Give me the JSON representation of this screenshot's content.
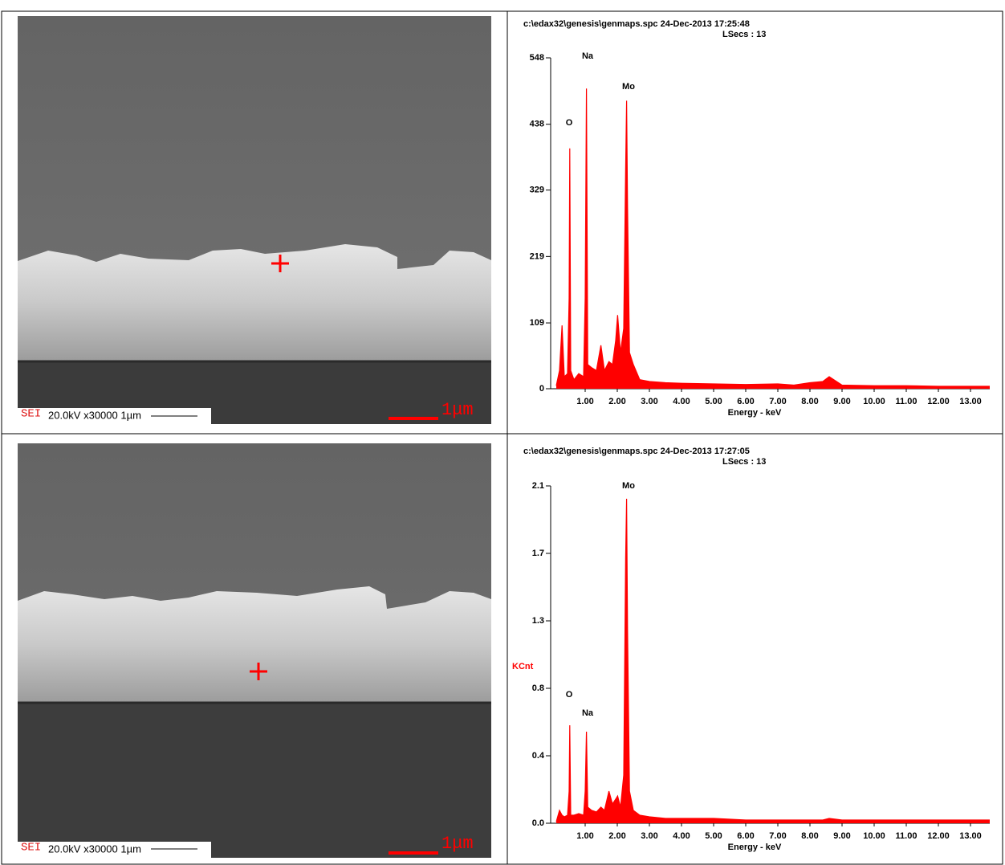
{
  "images": [
    {
      "detector": "SEI",
      "info": "20.0kV  x30000  1µm",
      "scale_bar": "1μm"
    },
    {
      "detector": "SEI",
      "info": "20.0kV  x30000  1µm",
      "scale_bar": "1μm"
    }
  ],
  "chart_data": [
    {
      "type": "area",
      "title": "c:\\edax32\\genesis\\genmaps.spc  24-Dec-2013 17:25:48",
      "subtitle": "LSecs : 13",
      "xlabel": "Energy - keV",
      "color": "#ff0000",
      "annotations": [
        "O",
        "Na",
        "Mo"
      ],
      "x": [
        0.1,
        0.2,
        0.28,
        0.35,
        0.45,
        0.5,
        0.52,
        0.55,
        0.65,
        0.8,
        0.95,
        1.0,
        1.04,
        1.08,
        1.2,
        1.35,
        1.49,
        1.6,
        1.74,
        1.85,
        1.95,
        2.01,
        2.1,
        2.2,
        2.26,
        2.29,
        2.32,
        2.38,
        2.5,
        2.7,
        3.0,
        3.5,
        4.0,
        5.0,
        6.0,
        7.0,
        7.5,
        8.0,
        8.4,
        8.6,
        9.0,
        10.0,
        11.0,
        12.0,
        13.0,
        13.6
      ],
      "values": [
        5,
        30,
        105,
        20,
        25,
        150,
        398,
        30,
        15,
        25,
        20,
        150,
        497,
        40,
        35,
        30,
        72,
        30,
        45,
        40,
        80,
        122,
        60,
        100,
        364,
        477,
        300,
        60,
        40,
        15,
        12,
        10,
        9,
        8,
        7,
        8,
        6,
        10,
        12,
        20,
        6,
        5,
        5,
        4,
        4,
        4
      ],
      "xlim": [
        0,
        13.6
      ],
      "xticks": [
        {
          "value": 1,
          "label": "1.00"
        },
        {
          "value": 2,
          "label": "2.00"
        },
        {
          "value": 3,
          "label": "3.00"
        },
        {
          "value": 4,
          "label": "4.00"
        },
        {
          "value": 5,
          "label": "5.00"
        },
        {
          "value": 6,
          "label": "6.00"
        },
        {
          "value": 7,
          "label": "7.00"
        },
        {
          "value": 8,
          "label": "8.00"
        },
        {
          "value": 9,
          "label": "9.00"
        },
        {
          "value": 10,
          "label": "10.00"
        },
        {
          "value": 11,
          "label": "11.00"
        },
        {
          "value": 12,
          "label": "12.00"
        },
        {
          "value": 13,
          "label": "13.00"
        }
      ],
      "ylim": [
        0,
        548
      ],
      "yticks": [
        0,
        109,
        219,
        329,
        438,
        548
      ]
    },
    {
      "type": "area",
      "title": "c:\\edax32\\genesis\\genmaps.spc  24-Dec-2013 17:27:05",
      "subtitle": "LSecs : 13",
      "xlabel": "Energy - keV",
      "ylabel": "KCnt",
      "color": "#ff0000",
      "annotations": [
        "O",
        "Na",
        "Mo"
      ],
      "x": [
        0.1,
        0.2,
        0.28,
        0.35,
        0.45,
        0.5,
        0.52,
        0.55,
        0.65,
        0.8,
        0.95,
        1.0,
        1.04,
        1.08,
        1.2,
        1.35,
        1.49,
        1.6,
        1.74,
        1.85,
        1.95,
        2.01,
        2.1,
        2.2,
        2.26,
        2.29,
        2.32,
        2.38,
        2.5,
        2.7,
        3.0,
        3.5,
        4.0,
        5.0,
        6.0,
        7.0,
        7.5,
        8.0,
        8.4,
        8.6,
        9.0,
        10.0,
        11.0,
        12.0,
        13.0,
        13.6
      ],
      "values": [
        0.01,
        0.08,
        0.05,
        0.04,
        0.05,
        0.2,
        0.61,
        0.05,
        0.05,
        0.06,
        0.05,
        0.2,
        0.57,
        0.1,
        0.08,
        0.07,
        0.1,
        0.08,
        0.2,
        0.12,
        0.15,
        0.17,
        0.1,
        0.3,
        1.65,
        2.02,
        1.2,
        0.2,
        0.08,
        0.05,
        0.04,
        0.03,
        0.03,
        0.03,
        0.02,
        0.02,
        0.02,
        0.02,
        0.02,
        0.03,
        0.02,
        0.02,
        0.02,
        0.02,
        0.02,
        0.02
      ],
      "xlim": [
        0,
        13.6
      ],
      "xticks": [
        {
          "value": 1,
          "label": "1.00"
        },
        {
          "value": 2,
          "label": "2.00"
        },
        {
          "value": 3,
          "label": "3.00"
        },
        {
          "value": 4,
          "label": "4.00"
        },
        {
          "value": 5,
          "label": "5.00"
        },
        {
          "value": 6,
          "label": "6.00"
        },
        {
          "value": 7,
          "label": "7.00"
        },
        {
          "value": 8,
          "label": "8.00"
        },
        {
          "value": 9,
          "label": "9.00"
        },
        {
          "value": 10,
          "label": "10.00"
        },
        {
          "value": 11,
          "label": "11.00"
        },
        {
          "value": 12,
          "label": "12.00"
        },
        {
          "value": 13,
          "label": "13.00"
        }
      ],
      "ylim": [
        0,
        2.1
      ],
      "yticks": [
        {
          "value": 0,
          "label": "0.0"
        },
        {
          "value": 0.42,
          "label": "0.4"
        },
        {
          "value": 0.84,
          "label": "0.8"
        },
        {
          "value": 1.26,
          "label": "1.3"
        },
        {
          "value": 1.68,
          "label": "1.7"
        },
        2.1
      ]
    }
  ]
}
